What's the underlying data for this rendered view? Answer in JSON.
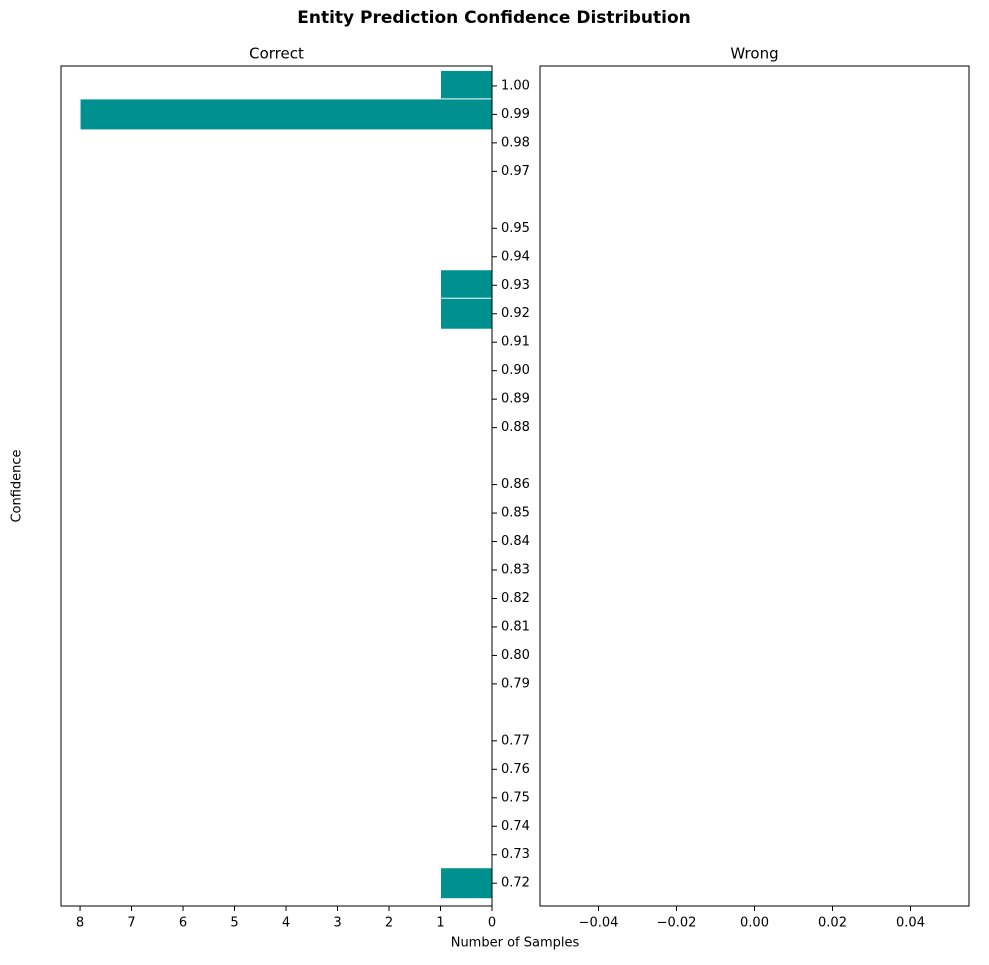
{
  "title": "Entity Prediction Confidence Distribution",
  "x_label": "Number of Samples",
  "y_label": "Confidence",
  "chart_data": [
    {
      "type": "barh",
      "title": "Correct",
      "y": [
        1.0,
        0.99,
        0.93,
        0.92,
        0.72
      ],
      "values": [
        1,
        8,
        1,
        1,
        1
      ],
      "color": "#009090",
      "edge_color": "#ffffff",
      "xlim": [
        8.37,
        0
      ],
      "xticks": [
        8,
        7,
        6,
        5,
        4,
        3,
        2,
        1,
        0
      ],
      "ylim": [
        0.712,
        1.007
      ],
      "yticks": [
        {
          "value": 1.0,
          "label": "1.00"
        },
        0.99,
        0.98,
        0.97,
        0.95,
        0.94,
        0.93,
        0.92,
        0.91,
        {
          "value": 0.9,
          "label": "0.90"
        },
        0.89,
        0.88,
        0.86,
        0.85,
        0.84,
        0.83,
        0.82,
        0.81,
        {
          "value": 0.8,
          "label": "0.80"
        },
        0.79,
        0.77,
        0.76,
        0.75,
        0.74,
        0.73,
        0.72
      ]
    },
    {
      "type": "barh",
      "title": "Wrong",
      "y": [],
      "values": [],
      "color": "#009090",
      "edge_color": "#ffffff",
      "xlim": [
        -0.055,
        0.055
      ],
      "xticks": [
        {
          "value": -0.04,
          "label": "−0.04"
        },
        {
          "value": -0.02,
          "label": "−0.02"
        },
        {
          "value": 0,
          "label": "0.00"
        },
        0.02,
        0.04
      ],
      "ylim": [
        0.712,
        1.007
      ]
    }
  ]
}
